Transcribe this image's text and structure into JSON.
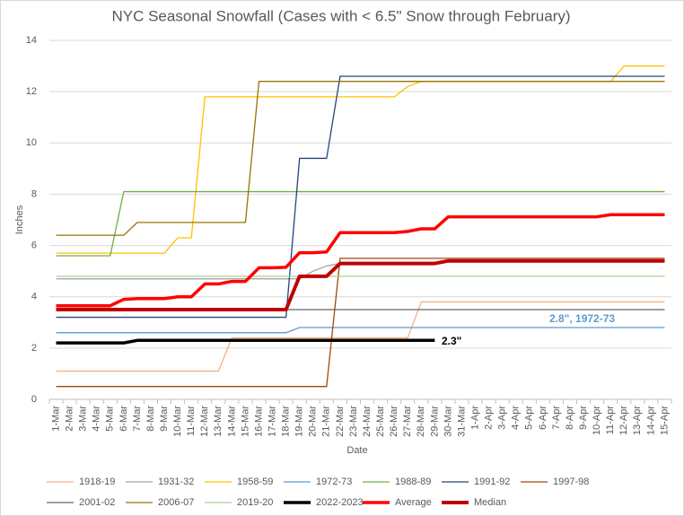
{
  "chart_data": {
    "type": "line",
    "title": "NYC Seasonal Snowfall (Cases with < 6.5\" Snow through February)",
    "x_label": "Date",
    "y_label": "Inches",
    "categories": [
      "1-Mar",
      "2-Mar",
      "3-Mar",
      "4-Mar",
      "5-Mar",
      "6-Mar",
      "7-Mar",
      "8-Mar",
      "9-Mar",
      "10-Mar",
      "11-Mar",
      "12-Mar",
      "13-Mar",
      "14-Mar",
      "15-Mar",
      "16-Mar",
      "17-Mar",
      "18-Mar",
      "19-Mar",
      "20-Mar",
      "21-Mar",
      "22-Mar",
      "23-Mar",
      "24-Mar",
      "25-Mar",
      "26-Mar",
      "27-Mar",
      "28-Mar",
      "29-Mar",
      "30-Mar",
      "31-Mar",
      "1-Apr",
      "2-Apr",
      "3-Apr",
      "4-Apr",
      "5-Apr",
      "6-Apr",
      "7-Apr",
      "8-Apr",
      "9-Apr",
      "10-Apr",
      "11-Apr",
      "12-Apr",
      "13-Apr",
      "14-Apr",
      "15-Apr"
    ],
    "ylim": [
      0,
      14
    ],
    "yticks": [
      0,
      2,
      4,
      6,
      8,
      10,
      12,
      14
    ],
    "grid": true,
    "legend": "bottom",
    "annotations": [
      "2.8\", 1972-73",
      "2.3\""
    ],
    "series": [
      {
        "name": "1918-19",
        "color": "#f4b183",
        "width": 1.3,
        "values": [
          1.1,
          1.1,
          1.1,
          1.1,
          1.1,
          1.1,
          1.1,
          1.1,
          1.1,
          1.1,
          1.1,
          1.1,
          1.1,
          2.4,
          2.4,
          2.4,
          2.4,
          2.4,
          2.4,
          2.4,
          2.4,
          2.4,
          2.4,
          2.4,
          2.4,
          2.4,
          2.4,
          3.8,
          3.8,
          3.8,
          3.8,
          3.8,
          3.8,
          3.8,
          3.8,
          3.8,
          3.8,
          3.8,
          3.8,
          3.8,
          3.8,
          3.8,
          3.8,
          3.8,
          3.8,
          3.8
        ]
      },
      {
        "name": "1931-32",
        "color": "#a5a5a5",
        "width": 1.3,
        "values": [
          4.7,
          4.7,
          4.7,
          4.7,
          4.7,
          4.7,
          4.7,
          4.7,
          4.7,
          4.7,
          4.7,
          4.7,
          4.7,
          4.7,
          4.7,
          4.7,
          4.7,
          4.7,
          4.7,
          5.0,
          5.2,
          5.3,
          5.3,
          5.3,
          5.3,
          5.3,
          5.3,
          5.3,
          5.3,
          5.4,
          5.4,
          5.4,
          5.4,
          5.4,
          5.4,
          5.4,
          5.4,
          5.4,
          5.4,
          5.4,
          5.4,
          5.4,
          5.4,
          5.4,
          5.4,
          5.4
        ]
      },
      {
        "name": "1958-59",
        "color": "#ffc000",
        "width": 1.3,
        "values": [
          5.7,
          5.7,
          5.7,
          5.7,
          5.7,
          5.7,
          5.7,
          5.7,
          5.7,
          6.3,
          6.3,
          11.8,
          11.8,
          11.8,
          11.8,
          11.8,
          11.8,
          11.8,
          11.8,
          11.8,
          11.8,
          11.8,
          11.8,
          11.8,
          11.8,
          11.8,
          12.2,
          12.4,
          12.4,
          12.4,
          12.4,
          12.4,
          12.4,
          12.4,
          12.4,
          12.4,
          12.4,
          12.4,
          12.4,
          12.4,
          12.4,
          12.4,
          13.0,
          13.0,
          13.0,
          13.0
        ]
      },
      {
        "name": "1972-73",
        "color": "#5b9bd5",
        "width": 1.3,
        "values": [
          2.6,
          2.6,
          2.6,
          2.6,
          2.6,
          2.6,
          2.6,
          2.6,
          2.6,
          2.6,
          2.6,
          2.6,
          2.6,
          2.6,
          2.6,
          2.6,
          2.6,
          2.6,
          2.8,
          2.8,
          2.8,
          2.8,
          2.8,
          2.8,
          2.8,
          2.8,
          2.8,
          2.8,
          2.8,
          2.8,
          2.8,
          2.8,
          2.8,
          2.8,
          2.8,
          2.8,
          2.8,
          2.8,
          2.8,
          2.8,
          2.8,
          2.8,
          2.8,
          2.8,
          2.8,
          2.8
        ]
      },
      {
        "name": "1988-89",
        "color": "#70ad47",
        "width": 1.3,
        "values": [
          5.6,
          5.6,
          5.6,
          5.6,
          5.6,
          8.1,
          8.1,
          8.1,
          8.1,
          8.1,
          8.1,
          8.1,
          8.1,
          8.1,
          8.1,
          8.1,
          8.1,
          8.1,
          8.1,
          8.1,
          8.1,
          8.1,
          8.1,
          8.1,
          8.1,
          8.1,
          8.1,
          8.1,
          8.1,
          8.1,
          8.1,
          8.1,
          8.1,
          8.1,
          8.1,
          8.1,
          8.1,
          8.1,
          8.1,
          8.1,
          8.1,
          8.1,
          8.1,
          8.1,
          8.1,
          8.1
        ]
      },
      {
        "name": "1991-92",
        "color": "#264478",
        "width": 1.3,
        "values": [
          3.2,
          3.2,
          3.2,
          3.2,
          3.2,
          3.2,
          3.2,
          3.2,
          3.2,
          3.2,
          3.2,
          3.2,
          3.2,
          3.2,
          3.2,
          3.2,
          3.2,
          3.2,
          9.4,
          9.4,
          9.4,
          12.6,
          12.6,
          12.6,
          12.6,
          12.6,
          12.6,
          12.6,
          12.6,
          12.6,
          12.6,
          12.6,
          12.6,
          12.6,
          12.6,
          12.6,
          12.6,
          12.6,
          12.6,
          12.6,
          12.6,
          12.6,
          12.6,
          12.6,
          12.6,
          12.6
        ]
      },
      {
        "name": "1997-98",
        "color": "#9e480e",
        "width": 1.3,
        "values": [
          0.5,
          0.5,
          0.5,
          0.5,
          0.5,
          0.5,
          0.5,
          0.5,
          0.5,
          0.5,
          0.5,
          0.5,
          0.5,
          0.5,
          0.5,
          0.5,
          0.5,
          0.5,
          0.5,
          0.5,
          0.5,
          5.5,
          5.5,
          5.5,
          5.5,
          5.5,
          5.5,
          5.5,
          5.5,
          5.5,
          5.5,
          5.5,
          5.5,
          5.5,
          5.5,
          5.5,
          5.5,
          5.5,
          5.5,
          5.5,
          5.5,
          5.5,
          5.5,
          5.5,
          5.5,
          5.5
        ]
      },
      {
        "name": "2001-02",
        "color": "#636363",
        "width": 1.3,
        "values": [
          3.5,
          3.5,
          3.5,
          3.5,
          3.5,
          3.5,
          3.5,
          3.5,
          3.5,
          3.5,
          3.5,
          3.5,
          3.5,
          3.5,
          3.5,
          3.5,
          3.5,
          3.5,
          3.5,
          3.5,
          3.5,
          3.5,
          3.5,
          3.5,
          3.5,
          3.5,
          3.5,
          3.5,
          3.5,
          3.5,
          3.5,
          3.5,
          3.5,
          3.5,
          3.5,
          3.5,
          3.5,
          3.5,
          3.5,
          3.5,
          3.5,
          3.5,
          3.5,
          3.5,
          3.5,
          3.5
        ]
      },
      {
        "name": "2006-07",
        "color": "#997300",
        "width": 1.3,
        "values": [
          6.4,
          6.4,
          6.4,
          6.4,
          6.4,
          6.4,
          6.9,
          6.9,
          6.9,
          6.9,
          6.9,
          6.9,
          6.9,
          6.9,
          6.9,
          12.4,
          12.4,
          12.4,
          12.4,
          12.4,
          12.4,
          12.4,
          12.4,
          12.4,
          12.4,
          12.4,
          12.4,
          12.4,
          12.4,
          12.4,
          12.4,
          12.4,
          12.4,
          12.4,
          12.4,
          12.4,
          12.4,
          12.4,
          12.4,
          12.4,
          12.4,
          12.4,
          12.4,
          12.4,
          12.4,
          12.4
        ]
      },
      {
        "name": "2019-20",
        "color": "#a9d18e",
        "width": 1.3,
        "values": [
          4.8,
          4.8,
          4.8,
          4.8,
          4.8,
          4.8,
          4.8,
          4.8,
          4.8,
          4.8,
          4.8,
          4.8,
          4.8,
          4.8,
          4.8,
          4.8,
          4.8,
          4.8,
          4.8,
          4.8,
          4.8,
          4.8,
          4.8,
          4.8,
          4.8,
          4.8,
          4.8,
          4.8,
          4.8,
          4.8,
          4.8,
          4.8,
          4.8,
          4.8,
          4.8,
          4.8,
          4.8,
          4.8,
          4.8,
          4.8,
          4.8,
          4.8,
          4.8,
          4.8,
          4.8,
          4.8
        ]
      },
      {
        "name": "2022-2023",
        "color": "#000000",
        "width": 3.5,
        "values": [
          2.2,
          2.2,
          2.2,
          2.2,
          2.2,
          2.2,
          2.3,
          2.3,
          2.3,
          2.3,
          2.3,
          2.3,
          2.3,
          2.3,
          2.3,
          2.3,
          2.3,
          2.3,
          2.3,
          2.3,
          2.3,
          2.3,
          2.3,
          2.3,
          2.3,
          2.3,
          2.3,
          2.3,
          2.3,
          null,
          null,
          null,
          null,
          null,
          null,
          null,
          null,
          null,
          null,
          null,
          null,
          null,
          null,
          null,
          null,
          null
        ]
      },
      {
        "name": "Average",
        "color": "#ff0000",
        "width": 3.5,
        "values": [
          3.65,
          3.65,
          3.65,
          3.65,
          3.65,
          3.9,
          3.93,
          3.93,
          3.93,
          4.0,
          4.0,
          4.5,
          4.5,
          4.6,
          4.6,
          5.13,
          5.13,
          5.15,
          5.72,
          5.72,
          5.75,
          6.5,
          6.5,
          6.5,
          6.5,
          6.5,
          6.55,
          6.65,
          6.65,
          7.12,
          7.12,
          7.12,
          7.12,
          7.12,
          7.12,
          7.12,
          7.12,
          7.12,
          7.12,
          7.12,
          7.12,
          7.2,
          7.2,
          7.2,
          7.2,
          7.2
        ]
      },
      {
        "name": "Median",
        "color": "#c00000",
        "width": 4,
        "values": [
          3.5,
          3.5,
          3.5,
          3.5,
          3.5,
          3.5,
          3.5,
          3.5,
          3.5,
          3.5,
          3.5,
          3.5,
          3.5,
          3.5,
          3.5,
          3.5,
          3.5,
          3.5,
          4.8,
          4.8,
          4.8,
          5.3,
          5.3,
          5.3,
          5.3,
          5.3,
          5.3,
          5.3,
          5.3,
          5.4,
          5.4,
          5.4,
          5.4,
          5.4,
          5.4,
          5.4,
          5.4,
          5.4,
          5.4,
          5.4,
          5.4,
          5.4,
          5.4,
          5.4,
          5.4,
          5.4
        ]
      }
    ]
  }
}
